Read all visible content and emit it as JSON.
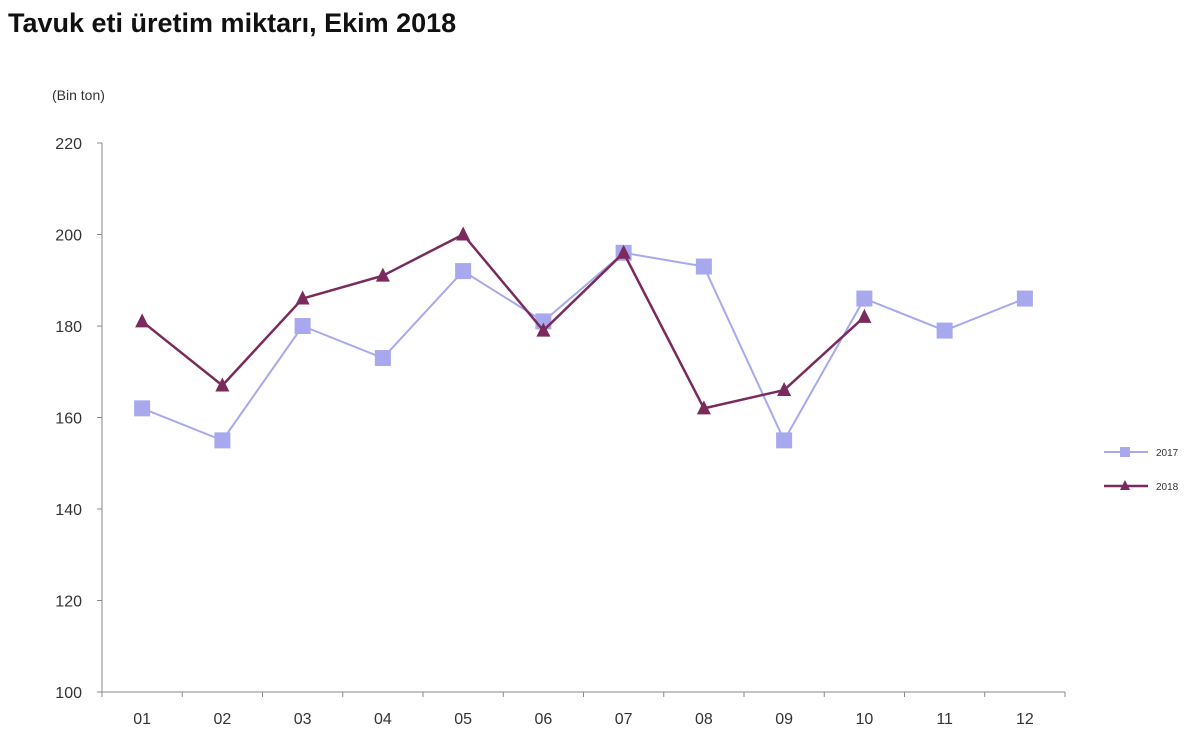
{
  "title": "Tavuk eti üretim miktarı, Ekim 2018",
  "colors": {
    "s2017": "#a8a8ee",
    "s2018": "#7a2a5c",
    "axis": "#888888"
  },
  "chart_data": {
    "type": "line",
    "title": "Tavuk eti üretim miktarı, Ekim 2018",
    "unit_label": "(Bin ton)",
    "xlabel": "",
    "ylabel": "(Bin ton)",
    "ylim": [
      100,
      220
    ],
    "yticks": [
      100,
      120,
      140,
      160,
      180,
      200,
      220
    ],
    "categories": [
      "01",
      "02",
      "03",
      "04",
      "05",
      "06",
      "07",
      "08",
      "09",
      "10",
      "11",
      "12"
    ],
    "grid": false,
    "legend_position": "right",
    "series": [
      {
        "name": "2017",
        "marker": "square",
        "values": [
          162,
          155,
          180,
          173,
          192,
          181,
          196,
          193,
          155,
          186,
          179,
          186
        ]
      },
      {
        "name": "2018",
        "marker": "triangle",
        "values": [
          181,
          167,
          186,
          191,
          200,
          179,
          196,
          162,
          166,
          182,
          null,
          null
        ]
      }
    ]
  }
}
